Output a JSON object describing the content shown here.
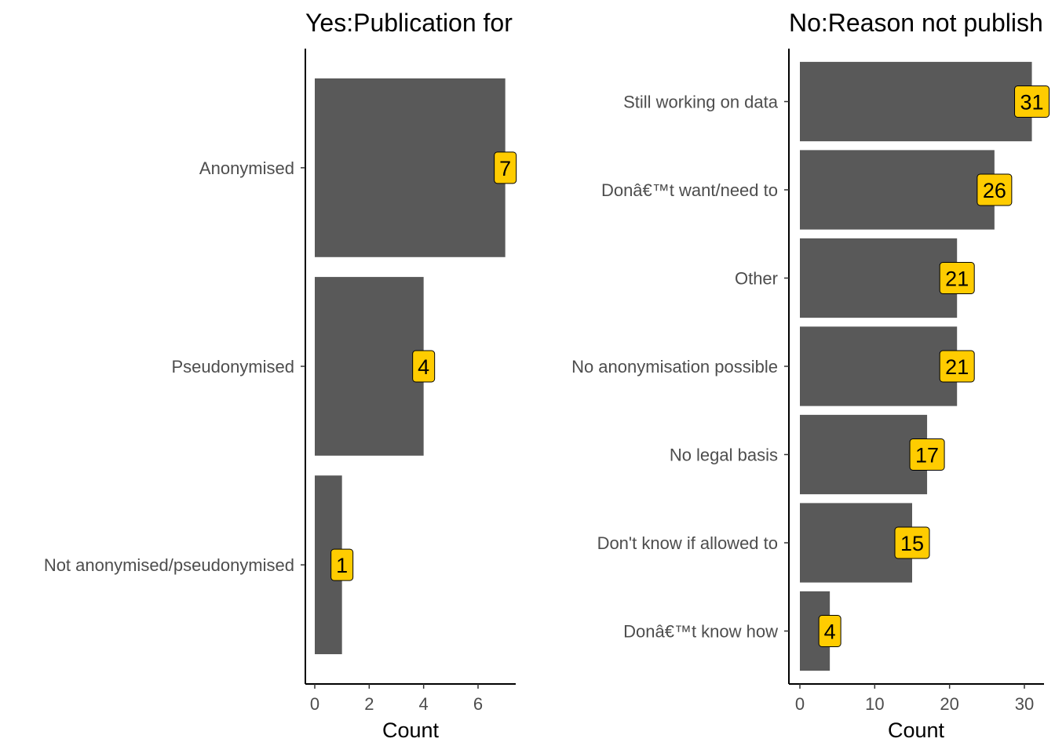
{
  "chart_data": [
    {
      "type": "bar",
      "orientation": "horizontal",
      "title": "Yes:Publication for",
      "xlabel": "Count",
      "ylabel": "",
      "categories": [
        "Anonymised",
        "Pseudonymised",
        "Not anonymised/pseudonymised"
      ],
      "values": [
        7,
        4,
        1
      ],
      "xlim": [
        0,
        7.3
      ],
      "xticks": [
        0,
        2,
        4,
        6
      ],
      "grid": false,
      "legend": "none",
      "bar_color": "#595959",
      "label_fill": "#ffcc00"
    },
    {
      "type": "bar",
      "orientation": "horizontal",
      "title": "No:Reason not publish",
      "xlabel": "Count",
      "ylabel": "",
      "categories": [
        "Still working on data",
        "Donâ€™t want/need to",
        "Other",
        "No anonymisation possible",
        "No legal basis",
        "Don't know if allowed to",
        "Donâ€™t know how"
      ],
      "values": [
        31,
        26,
        21,
        21,
        17,
        15,
        4
      ],
      "xlim": [
        0,
        32.5
      ],
      "xticks": [
        0,
        10,
        20,
        30
      ],
      "grid": false,
      "legend": "none",
      "bar_color": "#595959",
      "label_fill": "#ffcc00"
    }
  ]
}
